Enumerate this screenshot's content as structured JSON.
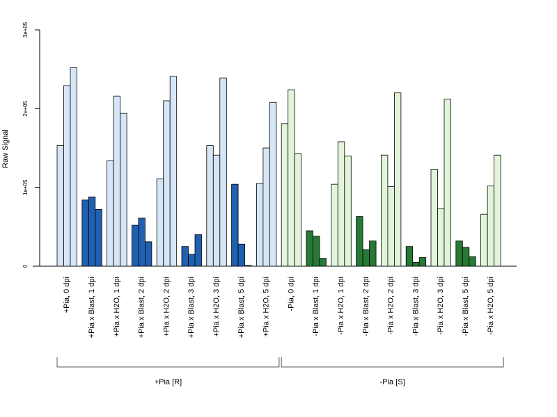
{
  "chart_data": {
    "type": "bar",
    "ylabel": "Raw Signal",
    "ylim": [
      0,
      300000
    ],
    "yticks": [
      {
        "value": 0,
        "label": "0"
      },
      {
        "value": 100000,
        "label": "1e+05"
      },
      {
        "value": 200000,
        "label": "2e+05"
      },
      {
        "value": 300000,
        "label": "3e+05"
      }
    ],
    "categories": [
      {
        "label": "+Pia, 0 dpi",
        "values": [
          153000,
          229000,
          252000
        ],
        "color": "#d6e6f7"
      },
      {
        "label": "+Pia x Blast, 1 dpi",
        "values": [
          84000,
          88000,
          72000
        ],
        "color": "#2060b0"
      },
      {
        "label": "+Pia x H2O, 1 dpi",
        "values": [
          134000,
          216000,
          194000
        ],
        "color": "#d6e6f7"
      },
      {
        "label": "+Pia x Blast, 2 dpi",
        "values": [
          52000,
          61000,
          31000
        ],
        "color": "#2060b0"
      },
      {
        "label": "+Pia x H2O, 2 dpi",
        "values": [
          111000,
          210000,
          241000
        ],
        "color": "#d6e6f7"
      },
      {
        "label": "+Pia x Blast, 3 dpi",
        "values": [
          25000,
          15000,
          40000
        ],
        "color": "#2060b0"
      },
      {
        "label": "+Pia x H2O, 3 dpi",
        "values": [
          153000,
          141000,
          239000
        ],
        "color": "#d6e6f7"
      },
      {
        "label": "+Pia x Blast, 5 dpi",
        "values": [
          104000,
          28000,
          1000
        ],
        "color": "#2060b0"
      },
      {
        "label": "+Pia x H2O, 5 dpi",
        "values": [
          105000,
          150000,
          208000
        ],
        "color": "#d6e6f7"
      },
      {
        "label": "-Pia, 0 dpi",
        "values": [
          181000,
          224000,
          143000
        ],
        "color": "#e2f5da"
      },
      {
        "label": "-Pia x Blast, 1 dpi",
        "values": [
          45000,
          38000,
          10000
        ],
        "color": "#267a36"
      },
      {
        "label": "-Pia x H2O, 1 dpi",
        "values": [
          104000,
          158000,
          140000
        ],
        "color": "#e2f5da"
      },
      {
        "label": "-Pia x Blast, 2 dpi",
        "values": [
          63000,
          21000,
          32000
        ],
        "color": "#267a36"
      },
      {
        "label": "-Pia x H2O, 2 dpi",
        "values": [
          141000,
          101000,
          220000
        ],
        "color": "#e2f5da"
      },
      {
        "label": "-Pia x Blast, 3 dpi",
        "values": [
          25000,
          5000,
          11000
        ],
        "color": "#267a36"
      },
      {
        "label": "-Pia x H2O, 3 dpi",
        "values": [
          123000,
          73000,
          212000
        ],
        "color": "#e2f5da"
      },
      {
        "label": "-Pia x Blast, 5 dpi",
        "values": [
          32000,
          24000,
          12000
        ],
        "color": "#267a36"
      },
      {
        "label": "-Pia x H2O, 5 dpi",
        "values": [
          66000,
          102000,
          141000
        ],
        "color": "#e2f5da"
      }
    ],
    "groups": [
      {
        "label": "+Pia [R]",
        "from": 0,
        "to": 8
      },
      {
        "label": "-Pia [S]",
        "from": 9,
        "to": 17
      }
    ]
  }
}
